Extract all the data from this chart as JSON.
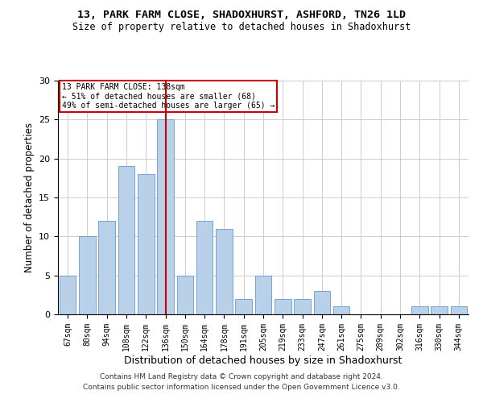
{
  "title1": "13, PARK FARM CLOSE, SHADOXHURST, ASHFORD, TN26 1LD",
  "title2": "Size of property relative to detached houses in Shadoxhurst",
  "xlabel": "Distribution of detached houses by size in Shadoxhurst",
  "ylabel": "Number of detached properties",
  "categories": [
    "67sqm",
    "80sqm",
    "94sqm",
    "108sqm",
    "122sqm",
    "136sqm",
    "150sqm",
    "164sqm",
    "178sqm",
    "191sqm",
    "205sqm",
    "219sqm",
    "233sqm",
    "247sqm",
    "261sqm",
    "275sqm",
    "289sqm",
    "302sqm",
    "316sqm",
    "330sqm",
    "344sqm"
  ],
  "values": [
    5,
    10,
    12,
    19,
    18,
    25,
    5,
    12,
    11,
    2,
    5,
    2,
    2,
    3,
    1,
    0,
    0,
    0,
    1,
    1,
    1
  ],
  "bar_color": "#b8d0e8",
  "bar_edge_color": "#6699cc",
  "marker_line_color": "#cc0000",
  "annotation_box_color": "#cc0000",
  "annotation_line1": "13 PARK FARM CLOSE: 138sqm",
  "annotation_line2": "← 51% of detached houses are smaller (68)",
  "annotation_line3": "49% of semi-detached houses are larger (65) →",
  "ylim": [
    0,
    30
  ],
  "yticks": [
    0,
    5,
    10,
    15,
    20,
    25,
    30
  ],
  "background_color": "#ffffff",
  "grid_color": "#cccccc",
  "footnote1": "Contains HM Land Registry data © Crown copyright and database right 2024.",
  "footnote2": "Contains public sector information licensed under the Open Government Licence v3.0."
}
